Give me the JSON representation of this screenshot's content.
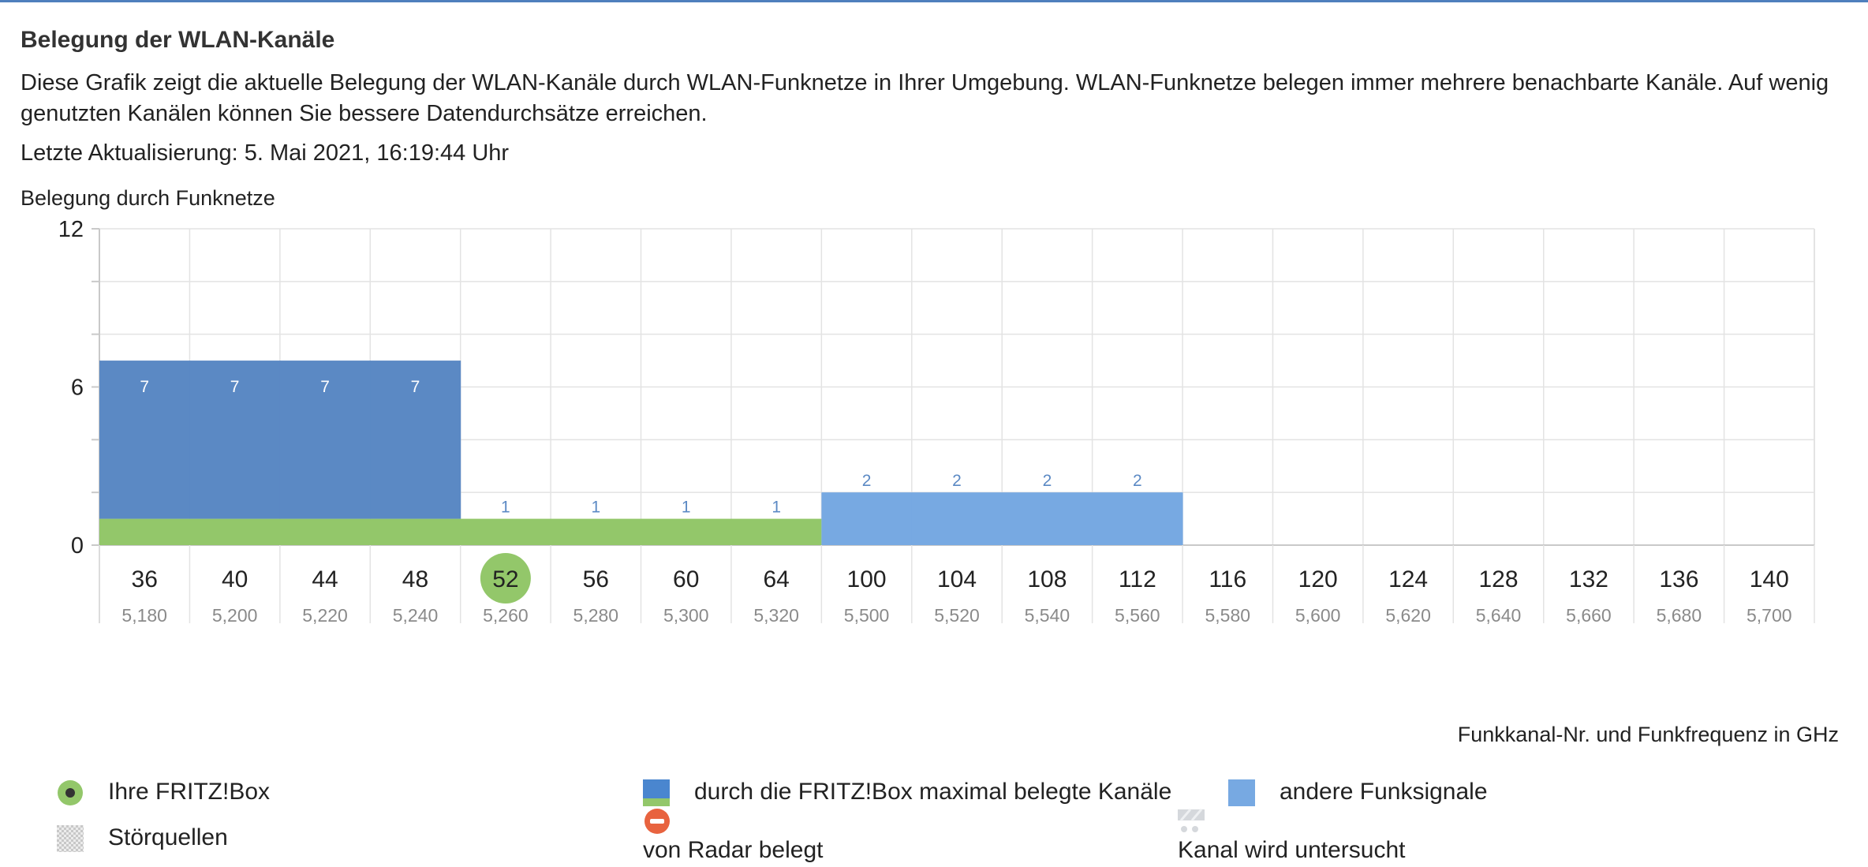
{
  "header": {
    "title": "Belegung der WLAN-Kanäle",
    "description": "Diese Grafik zeigt die aktuelle Belegung der WLAN-Kanäle durch WLAN-Funknetze in Ihrer Umgebung. WLAN-Funknetze belegen immer mehrere benachbarte Kanäle. Auf wenig genutzten Kanälen können Sie bessere Datendurchsätze erreichen.",
    "last_update": "Letzte Aktualisierung: 5. Mai 2021, 16:19:44 Uhr"
  },
  "chart_data": {
    "type": "bar",
    "title": "",
    "ylabel": "Belegung durch Funknetze",
    "xlabel": "Funkkanal-Nr. und Funkfrequenz in GHz",
    "ylim": [
      0,
      12
    ],
    "yticks": [
      0,
      6,
      12
    ],
    "grid": true,
    "categories": [
      "36",
      "40",
      "44",
      "48",
      "52",
      "56",
      "60",
      "64",
      "100",
      "104",
      "108",
      "112",
      "116",
      "120",
      "124",
      "128",
      "132",
      "136",
      "140"
    ],
    "frequencies": [
      "5,180",
      "5,200",
      "5,220",
      "5,240",
      "5,260",
      "5,280",
      "5,300",
      "5,320",
      "5,500",
      "5,520",
      "5,540",
      "5,560",
      "5,580",
      "5,600",
      "5,620",
      "5,640",
      "5,660",
      "5,680",
      "5,700"
    ],
    "own_channel": "52",
    "fritzbox_band": {
      "from": "36",
      "to": "64",
      "value": 1
    },
    "series": [
      {
        "name": "andere Funksignale",
        "values": [
          7,
          7,
          7,
          7,
          1,
          1,
          1,
          1,
          2,
          2,
          2,
          2,
          0,
          0,
          0,
          0,
          0,
          0,
          0
        ]
      }
    ],
    "colors": {
      "dark_bar": "#5b89c4",
      "light_bar": "#77a9e2",
      "fritz_band": "#93c76a",
      "own_channel": "#93c76a",
      "radar": "#e8633f",
      "grid": "#e3e3e3",
      "axis": "#c9c9c9",
      "bar_label_inside": "#ffffff",
      "bar_label_outside": "#5b89c4"
    }
  },
  "legend": {
    "own_box": "Ihre FRITZ!Box",
    "max_channels": "durch die FRITZ!Box maximal belegte Kanäle",
    "other_signals": "andere Funksignale",
    "interference": "Störquellen",
    "radar": "von Radar belegt",
    "checking": "Kanal wird untersucht"
  }
}
